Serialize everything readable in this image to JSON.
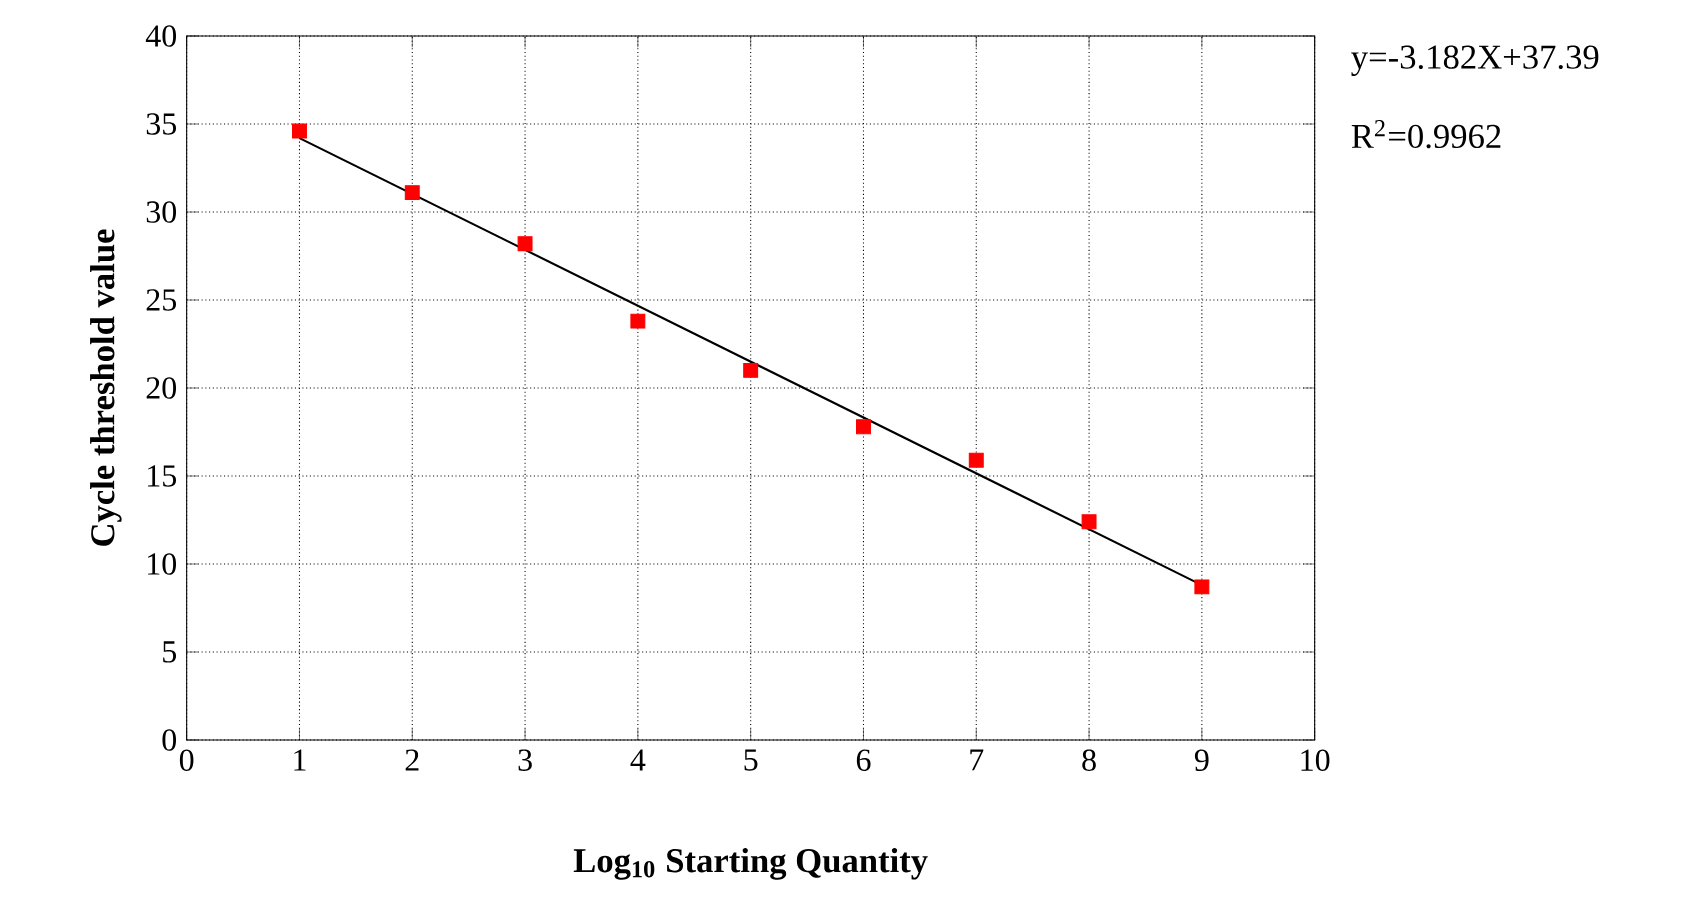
{
  "chart_data": {
    "type": "scatter",
    "xlabel": "Log$_{10}$ Starting Quantity",
    "ylabel": "Cycle threshold value",
    "annotations": [
      "y=-3.182X+37.39",
      "R$^{2}$=0.9962"
    ],
    "series": [
      {
        "color": "#ff0000",
        "marker": "square",
        "x": [
          1,
          2,
          3,
          4,
          5,
          6,
          7,
          8,
          9
        ],
        "values": [
          34.6,
          31.1,
          28.2,
          23.8,
          21.0,
          17.8,
          15.9,
          12.4,
          8.7
        ]
      },
      {
        "type": "line",
        "color": "#000000",
        "marker": "none",
        "x": [
          1,
          9
        ],
        "values": [
          34.2,
          8.8
        ]
      }
    ],
    "xlim": [
      0,
      10
    ],
    "ylim": [
      0,
      40
    ],
    "xticks": [
      0,
      1,
      2,
      3,
      4,
      5,
      6,
      7,
      8,
      9,
      10
    ],
    "yticks": [
      0,
      5,
      10,
      15,
      20,
      25,
      30,
      35,
      40
    ],
    "grid": true
  }
}
